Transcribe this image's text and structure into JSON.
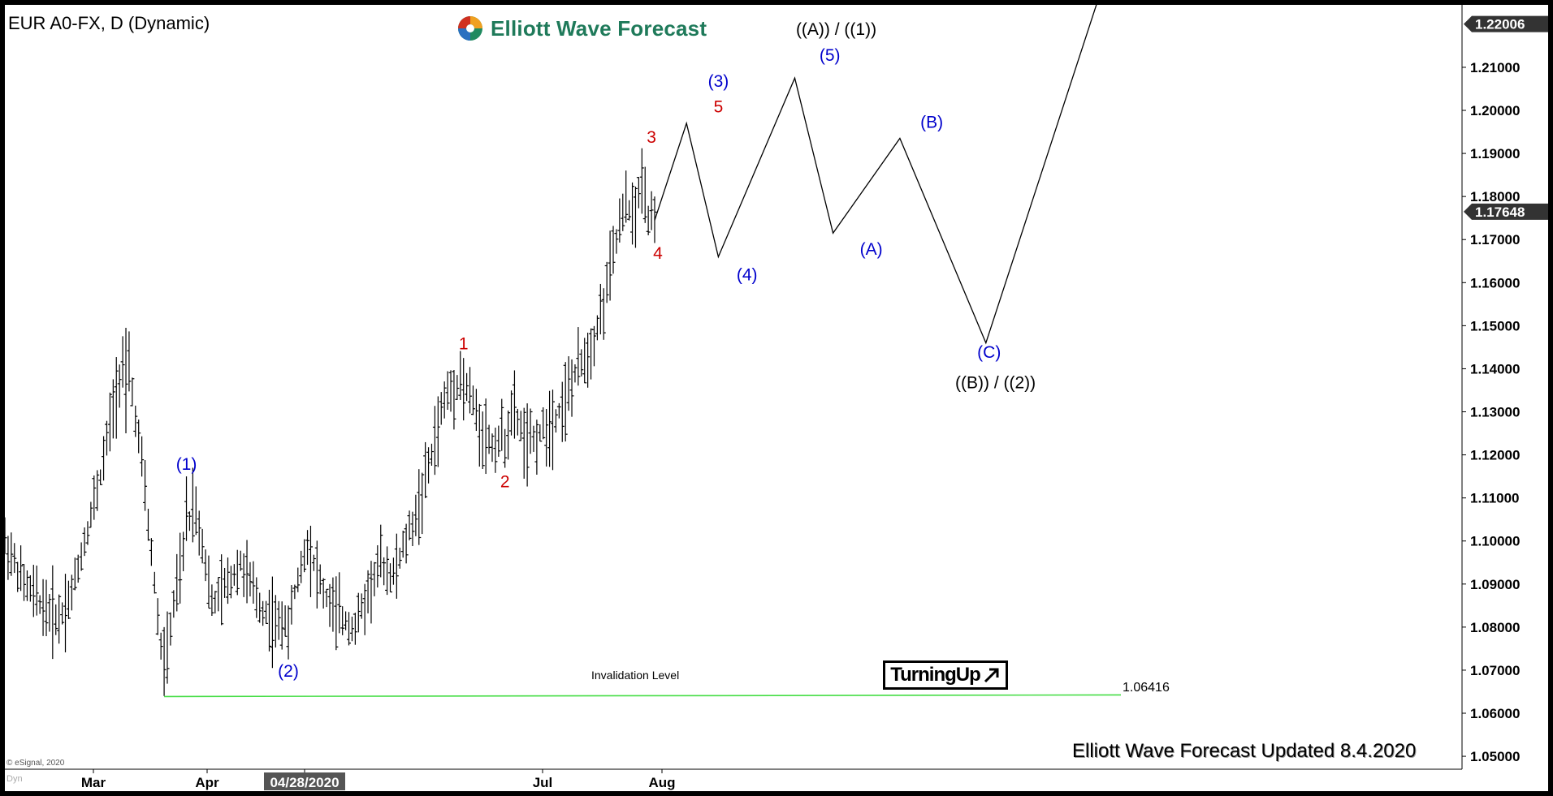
{
  "header": {
    "symbol": "EUR A0-FX, D (Dynamic)",
    "brand": "Elliott Wave Forecast",
    "logo_icon": "elliott-wave-logo-icon"
  },
  "footer": {
    "updated": "Elliott Wave Forecast Updated 8.4.2020",
    "copyright": "© eSignal, 2020",
    "dyn": "Dyn"
  },
  "badge": {
    "label": "TurningUp",
    "icon": "arrow-up-right-icon"
  },
  "chart_data": {
    "type": "ohlc-bar",
    "title": "",
    "xlabel": "",
    "ylabel": "",
    "ylim": [
      1.047,
      1.2245
    ],
    "x_ticks": [
      "Mar",
      "Apr",
      "04/28/2020",
      "Jul",
      "Aug"
    ],
    "x_tick_highlight": "04/28/2020",
    "y_ticks": [
      "1.05000",
      "1.06000",
      "1.07000",
      "1.08000",
      "1.09000",
      "1.10000",
      "1.11000",
      "1.12000",
      "1.13000",
      "1.14000",
      "1.15000",
      "1.16000",
      "1.17000",
      "1.18000",
      "1.19000",
      "1.20000",
      "1.21000"
    ],
    "price_tags": [
      {
        "label": "1.22006",
        "value": 1.22006
      },
      {
        "label": "1.17648",
        "value": 1.17648
      }
    ],
    "invalidation": {
      "label": "Invalidation Level",
      "value_label": "1.06416",
      "value": 1.06416,
      "color": "#44dd44"
    },
    "colors": {
      "bars": "#000000",
      "wave_red": "#cc0000",
      "wave_blue": "#0000cc",
      "wave_black": "#000000"
    },
    "anchors": [
      {
        "x": 0,
        "y": 1.1
      },
      {
        "x": 6,
        "y": 1.09
      },
      {
        "x": 12,
        "y": 1.085
      },
      {
        "x": 17,
        "y": 1.082
      },
      {
        "x": 21,
        "y": 1.088
      },
      {
        "x": 25,
        "y": 1.1
      },
      {
        "x": 30,
        "y": 1.115
      },
      {
        "x": 35,
        "y": 1.135
      },
      {
        "x": 38,
        "y": 1.145
      },
      {
        "x": 43,
        "y": 1.118
      },
      {
        "x": 47,
        "y": 1.09
      },
      {
        "x": 50,
        "y": 1.068
      },
      {
        "x": 53,
        "y": 1.085
      },
      {
        "x": 57,
        "y": 1.1
      },
      {
        "x": 59,
        "y": 1.11
      },
      {
        "x": 62,
        "y": 1.1
      },
      {
        "x": 65,
        "y": 1.085
      },
      {
        "x": 70,
        "y": 1.09
      },
      {
        "x": 74,
        "y": 1.095
      },
      {
        "x": 80,
        "y": 1.085
      },
      {
        "x": 86,
        "y": 1.08
      },
      {
        "x": 90,
        "y": 1.085
      },
      {
        "x": 95,
        "y": 1.1
      },
      {
        "x": 100,
        "y": 1.088
      },
      {
        "x": 104,
        "y": 1.083
      },
      {
        "x": 110,
        "y": 1.08
      },
      {
        "x": 114,
        "y": 1.088
      },
      {
        "x": 118,
        "y": 1.095
      },
      {
        "x": 122,
        "y": 1.092
      },
      {
        "x": 126,
        "y": 1.1
      },
      {
        "x": 130,
        "y": 1.108
      },
      {
        "x": 134,
        "y": 1.12
      },
      {
        "x": 138,
        "y": 1.133
      },
      {
        "x": 143,
        "y": 1.138
      },
      {
        "x": 146,
        "y": 1.134
      },
      {
        "x": 149,
        "y": 1.127
      },
      {
        "x": 153,
        "y": 1.122
      },
      {
        "x": 157,
        "y": 1.125
      },
      {
        "x": 160,
        "y": 1.13
      },
      {
        "x": 164,
        "y": 1.122
      },
      {
        "x": 168,
        "y": 1.125
      },
      {
        "x": 172,
        "y": 1.128
      },
      {
        "x": 176,
        "y": 1.133
      },
      {
        "x": 180,
        "y": 1.14
      },
      {
        "x": 184,
        "y": 1.145
      },
      {
        "x": 188,
        "y": 1.155
      },
      {
        "x": 192,
        "y": 1.17
      },
      {
        "x": 195,
        "y": 1.178
      },
      {
        "x": 198,
        "y": 1.175
      },
      {
        "x": 200,
        "y": 1.185
      },
      {
        "x": 202,
        "y": 1.176
      },
      {
        "x": 204,
        "y": 1.177
      }
    ],
    "projection": [
      {
        "x": 204,
        "y": 1.1745
      },
      {
        "x": 214,
        "y": 1.197
      },
      {
        "x": 224,
        "y": 1.166
      },
      {
        "x": 248,
        "y": 1.2075
      },
      {
        "x": 260,
        "y": 1.1715
      },
      {
        "x": 281,
        "y": 1.1935
      },
      {
        "x": 308,
        "y": 1.146
      },
      {
        "x": 344,
        "y": 1.2275
      }
    ],
    "labels": [
      {
        "text": "(1)",
        "x": 57,
        "y": 1.1165,
        "color": "blue"
      },
      {
        "text": "(2)",
        "x": 89,
        "y": 1.0685,
        "color": "blue"
      },
      {
        "text": "1",
        "x": 144,
        "y": 1.1445,
        "color": "red"
      },
      {
        "text": "2",
        "x": 157,
        "y": 1.1125,
        "color": "red"
      },
      {
        "text": "3",
        "x": 203,
        "y": 1.1925,
        "color": "red"
      },
      {
        "text": "4",
        "x": 205,
        "y": 1.1655,
        "color": "red"
      },
      {
        "text": "5",
        "x": 224,
        "y": 1.1995,
        "color": "red"
      },
      {
        "text": "(3)",
        "x": 224,
        "y": 1.2055,
        "color": "blue"
      },
      {
        "text": "(4)",
        "x": 233,
        "y": 1.1605,
        "color": "blue"
      },
      {
        "text": "(5)",
        "x": 259,
        "y": 1.2115,
        "color": "blue"
      },
      {
        "text": "((A)) / ((1))",
        "x": 261,
        "y": 1.2175,
        "color": "black"
      },
      {
        "text": "(A)",
        "x": 272,
        "y": 1.1665,
        "color": "blue"
      },
      {
        "text": "(B)",
        "x": 291,
        "y": 1.196,
        "color": "blue"
      },
      {
        "text": "(C)",
        "x": 309,
        "y": 1.1425,
        "color": "blue"
      },
      {
        "text": "((B)) / ((2))",
        "x": 311,
        "y": 1.1355,
        "color": "black"
      }
    ]
  }
}
